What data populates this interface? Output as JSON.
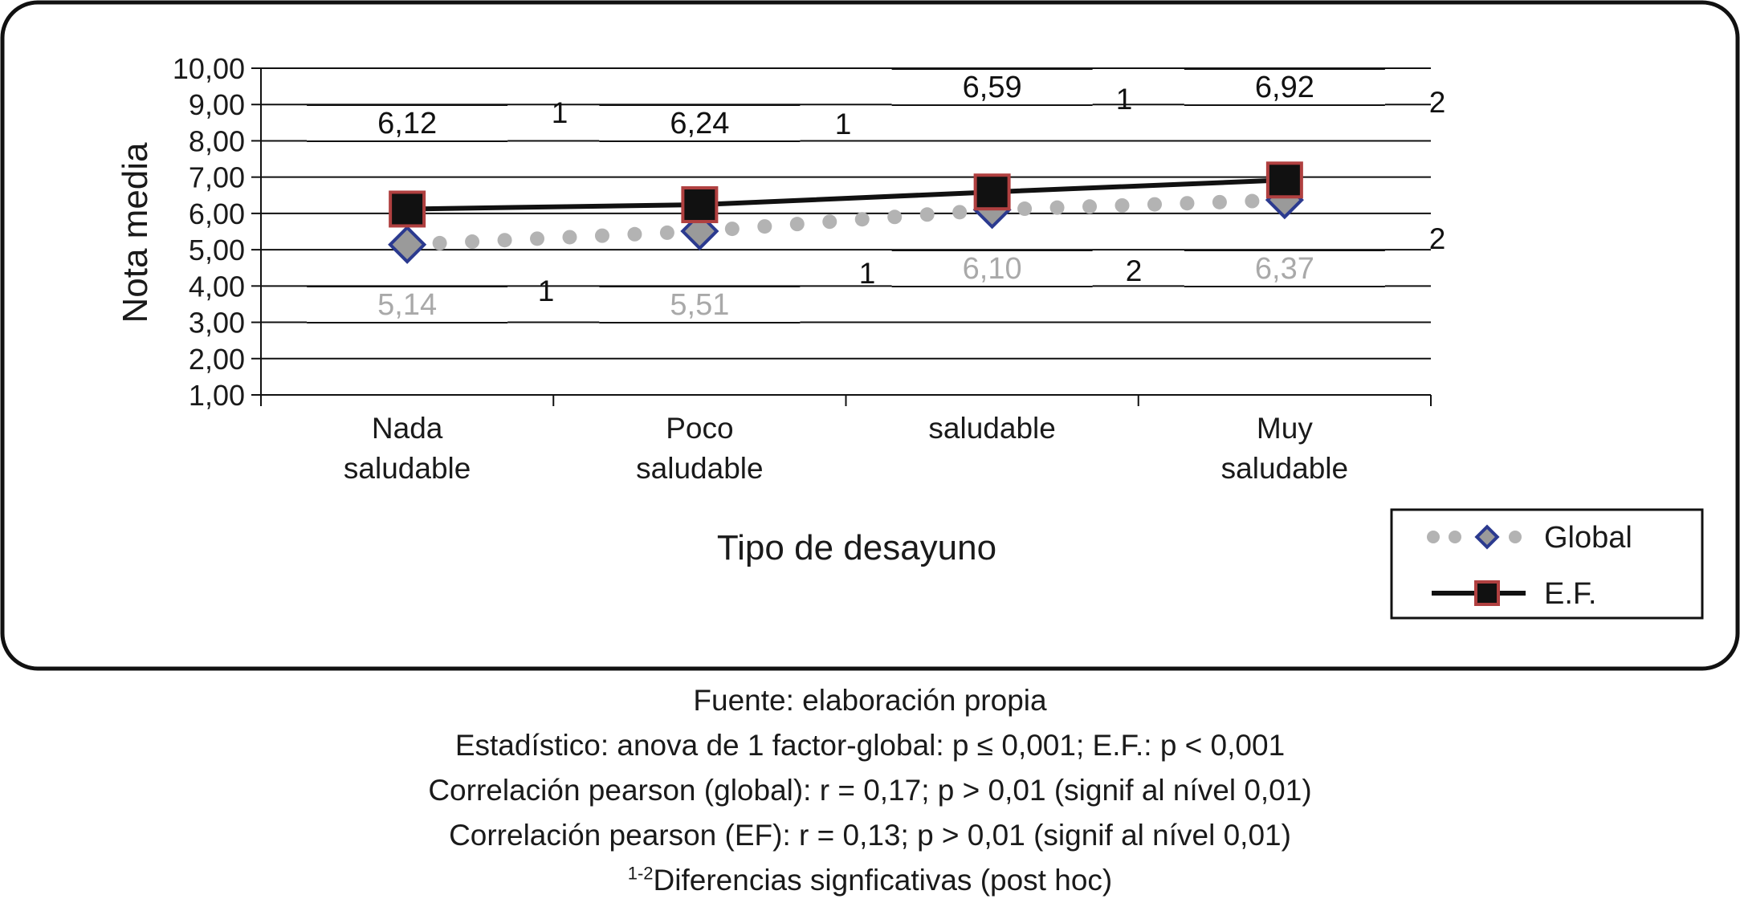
{
  "chart_data": {
    "type": "line",
    "categories": [
      [
        "Nada",
        "saludable"
      ],
      [
        "Poco",
        "saludable"
      ],
      [
        "saludable"
      ],
      [
        "Muy",
        "saludable"
      ]
    ],
    "series": [
      {
        "name": "Global",
        "values": [
          5.14,
          5.51,
          6.1,
          6.37
        ],
        "labels": [
          "5,14",
          "5,51",
          "6,10",
          "6,37"
        ],
        "style": "dotted",
        "color": "#b3b3b3",
        "marker": "diamond"
      },
      {
        "name": "E.F.",
        "values": [
          6.12,
          6.24,
          6.59,
          6.92
        ],
        "labels": [
          "6,12",
          "6,24",
          "6,59",
          "6,92"
        ],
        "style": "solid",
        "color": "#111111",
        "marker": "square"
      }
    ],
    "xlabel": "Tipo de desayuno",
    "ylabel": "Nota media",
    "ylim": [
      1,
      10
    ],
    "yticks": [
      "1,00",
      "2,00",
      "3,00",
      "4,00",
      "5,00",
      "6,00",
      "7,00",
      "8,00",
      "9,00",
      "10,00"
    ],
    "grid": true,
    "legend_position": "bottom-right",
    "significance_marks_top": [
      "1",
      "1",
      "1",
      "2"
    ],
    "significance_marks_bottom": [
      "1",
      "1",
      "2",
      "2"
    ]
  },
  "notes": {
    "source": "Fuente: elaboración propia",
    "stat": "Estadístico: anova de 1 factor-global: p ≤ 0,001; E.F.: p < 0,001",
    "corr_global": "Correlación pearson (global): r = 0,17; p > 0,01 (signif al nível 0,01)",
    "corr_ef": "Correlación pearson (EF): r = 0,13; p > 0,01 (signif al nível 0,01)",
    "diff_sup": "1-2",
    "diff_text": "Diferencias signficativas (post hoc)"
  },
  "colors": {
    "global_marker_fill": "#9a9a9a",
    "global_marker_stroke": "#2b3a8f",
    "ef_marker_fill": "#111111",
    "ef_marker_stroke": "#b04040"
  }
}
